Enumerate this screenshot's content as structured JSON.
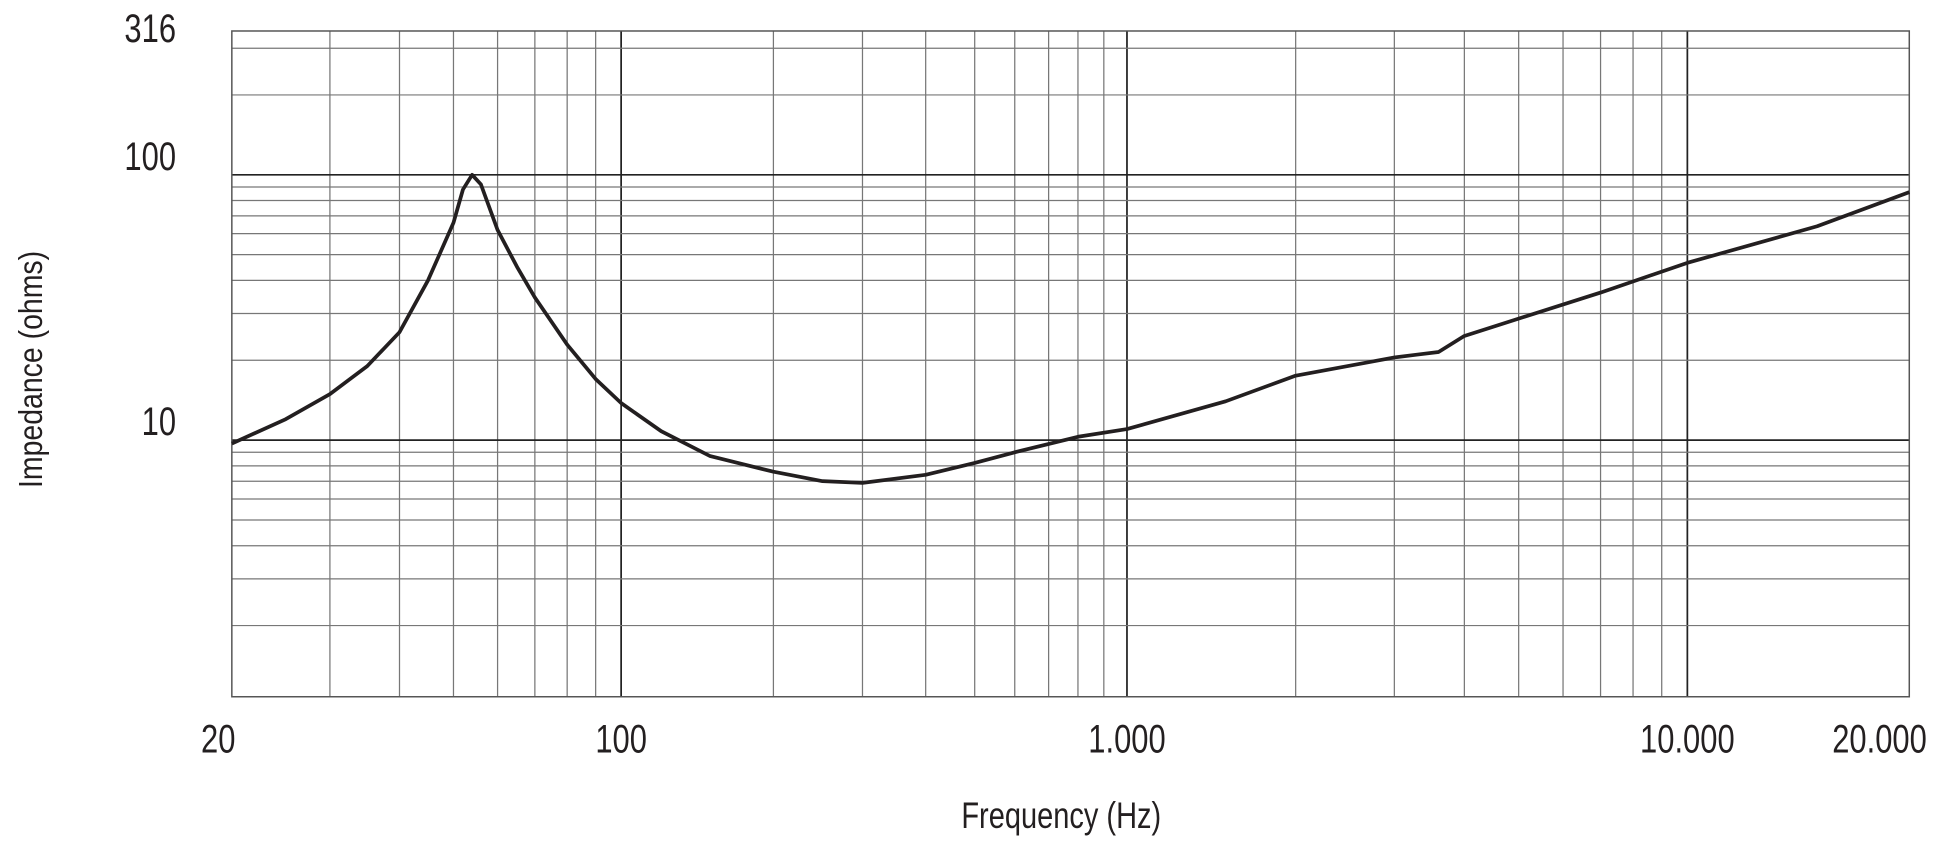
{
  "chart_data": {
    "type": "line",
    "title": "",
    "xlabel": "Frequency (Hz)",
    "ylabel": "Impedance (ohms)",
    "x_scale": "log",
    "y_scale": "log",
    "xlim": [
      20,
      20000
    ],
    "ylim": [
      1,
      316
    ],
    "grid": true,
    "x_tick_labels": [
      {
        "value": 20,
        "label": "20"
      },
      {
        "value": 100,
        "label": "100"
      },
      {
        "value": 1000,
        "label": "1.000"
      },
      {
        "value": 10000,
        "label": "10.000"
      },
      {
        "value": 20000,
        "label": "20.000"
      }
    ],
    "y_tick_labels": [
      {
        "value": 10,
        "label": "10"
      },
      {
        "value": 100,
        "label": "100"
      },
      {
        "value": 316,
        "label": "316"
      }
    ],
    "line_color": "#231f20",
    "series": [
      {
        "x": [
          20,
          25,
          30,
          35,
          40,
          45,
          50,
          52,
          54,
          56,
          60,
          65,
          70,
          80,
          90,
          100,
          120,
          150,
          200,
          250,
          300,
          400,
          500,
          600,
          800,
          1000,
          1500,
          2000,
          3000,
          3300,
          3600,
          4000,
          5000,
          7000,
          10000,
          15000,
          20000
        ],
        "y": [
          9.7,
          12,
          14.9,
          19,
          25.5,
          40,
          66,
          88,
          100,
          92,
          62,
          45,
          34.5,
          22.9,
          17,
          13.8,
          10.8,
          8.7,
          7.6,
          7,
          6.9,
          7.4,
          8.2,
          9.0,
          10.3,
          11,
          14,
          17.5,
          20.5,
          21,
          21.5,
          24.7,
          28.7,
          36,
          46.6,
          64,
          86
        ]
      }
    ]
  }
}
